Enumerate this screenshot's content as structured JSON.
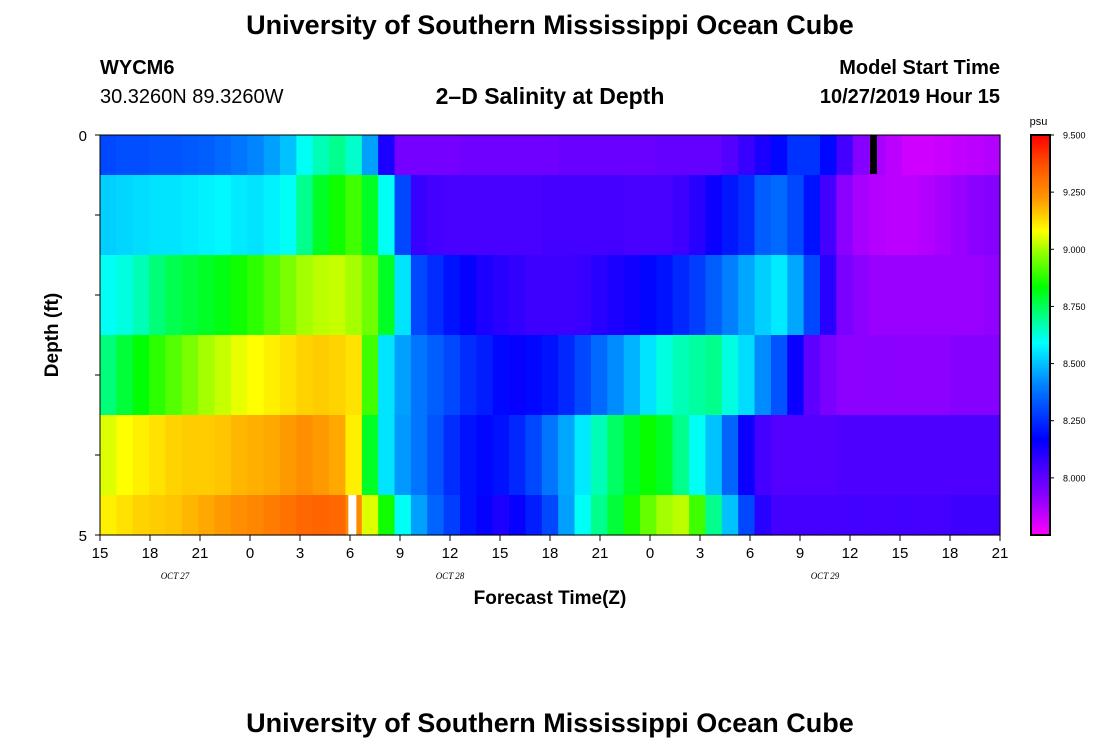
{
  "header": {
    "title": "University of Southern Mississippi Ocean Cube",
    "station_id": "WYCM6",
    "station_coords": "30.3260N 89.3260W",
    "plot_title": "2–D Salinity at Depth",
    "start_label": "Model Start Time",
    "start_value": "10/27/2019 Hour 15"
  },
  "footer": {
    "title": "University of Southern Mississippi Ocean Cube"
  },
  "chart_data": {
    "type": "heatmap",
    "xlabel": "Forecast Time(Z)",
    "ylabel": "Depth (ft)",
    "x_hours": [
      15,
      16,
      17,
      18,
      19,
      20,
      21,
      22,
      23,
      24,
      25,
      26,
      27,
      28,
      29,
      30,
      31,
      32,
      33,
      34,
      35,
      36,
      37,
      38,
      39,
      40,
      41,
      42,
      43,
      44,
      45,
      46,
      47,
      48,
      49,
      50,
      51,
      52,
      53,
      54,
      55,
      56,
      57,
      58,
      59,
      60,
      61,
      62,
      63,
      64,
      65,
      66,
      67,
      68,
      69
    ],
    "x_range": [
      15,
      69
    ],
    "x_tick_labels": [
      "15",
      "18",
      "21",
      "0",
      "3",
      "6",
      "9",
      "12",
      "15",
      "18",
      "21",
      "0",
      "3",
      "6",
      "9",
      "12",
      "15",
      "18",
      "21"
    ],
    "x_tick_hours": [
      15,
      18,
      21,
      24,
      27,
      30,
      33,
      36,
      39,
      42,
      45,
      48,
      51,
      54,
      57,
      60,
      63,
      66,
      69
    ],
    "date_labels": [
      {
        "text": "OCT 27",
        "hour": 19.5
      },
      {
        "text": "OCT 28",
        "hour": 36
      },
      {
        "text": "OCT 29",
        "hour": 58.5
      }
    ],
    "y_tick_labels": [
      "0",
      "5"
    ],
    "y_range": [
      0,
      5
    ],
    "depth_rows": [
      0,
      1,
      2,
      3,
      4,
      5
    ],
    "colorbar": {
      "unit": "psu",
      "min": 7.75,
      "max": 9.5,
      "tick_labels": [
        "9.500",
        "9.250",
        "9.000",
        "8.750",
        "8.500",
        "8.250",
        "8.000"
      ],
      "tick_values": [
        9.5,
        9.25,
        9.0,
        8.75,
        8.5,
        8.25,
        8.0
      ]
    },
    "series": [
      {
        "values": [
          8.3,
          8.31,
          8.31,
          8.32,
          8.32,
          8.33,
          8.34,
          8.36,
          8.38,
          8.41,
          8.45,
          8.5,
          8.6,
          8.66,
          8.7,
          8.64,
          8.45,
          8.12,
          7.96,
          7.96,
          7.96,
          7.96,
          7.97,
          7.97,
          7.97,
          7.97,
          7.97,
          7.97,
          7.98,
          7.98,
          7.98,
          7.98,
          7.98,
          7.98,
          7.99,
          7.99,
          7.99,
          7.99,
          8.02,
          8.07,
          8.12,
          8.18,
          8.26,
          8.26,
          8.18,
          8.05,
          7.93,
          7.88,
          7.85,
          7.82,
          7.82,
          7.83,
          7.84,
          7.85,
          7.86
        ]
      },
      {
        "values": [
          8.52,
          8.53,
          8.54,
          8.55,
          8.55,
          8.56,
          8.57,
          8.58,
          8.56,
          8.55,
          8.57,
          8.6,
          8.7,
          8.8,
          8.85,
          8.9,
          8.8,
          8.6,
          8.3,
          8.07,
          8.05,
          8.04,
          8.04,
          8.04,
          8.04,
          8.04,
          8.04,
          8.05,
          8.05,
          8.05,
          8.05,
          8.05,
          8.04,
          8.04,
          8.04,
          8.06,
          8.1,
          8.15,
          8.21,
          8.25,
          8.34,
          8.36,
          8.3,
          8.2,
          8.05,
          7.92,
          7.88,
          7.86,
          7.85,
          7.85,
          7.86,
          7.88,
          7.9,
          7.92,
          7.93
        ]
      },
      {
        "values": [
          8.6,
          8.62,
          8.66,
          8.72,
          8.76,
          8.78,
          8.8,
          8.82,
          8.85,
          8.88,
          8.92,
          8.96,
          9.0,
          9.02,
          9.03,
          9.0,
          8.95,
          8.8,
          8.55,
          8.3,
          8.25,
          8.2,
          8.16,
          8.12,
          8.1,
          8.08,
          8.06,
          8.06,
          8.06,
          8.07,
          8.1,
          8.12,
          8.14,
          8.18,
          8.2,
          8.24,
          8.28,
          8.34,
          8.4,
          8.46,
          8.52,
          8.56,
          8.46,
          8.3,
          8.1,
          7.95,
          7.92,
          7.9,
          7.9,
          7.9,
          7.9,
          7.9,
          7.9,
          7.9,
          7.91
        ]
      },
      {
        "values": [
          8.72,
          8.78,
          8.83,
          8.88,
          8.92,
          8.96,
          9.0,
          9.03,
          9.06,
          9.08,
          9.1,
          9.12,
          9.14,
          9.15,
          9.14,
          9.12,
          8.9,
          8.55,
          8.45,
          8.38,
          8.34,
          8.3,
          8.25,
          8.22,
          8.18,
          8.16,
          8.18,
          8.2,
          8.24,
          8.3,
          8.36,
          8.42,
          8.48,
          8.55,
          8.62,
          8.66,
          8.68,
          8.7,
          8.62,
          8.54,
          8.42,
          8.32,
          8.15,
          8.0,
          7.95,
          7.92,
          7.92,
          7.92,
          7.92,
          7.92,
          7.92,
          7.92,
          7.93,
          7.93,
          7.93
        ]
      },
      {
        "values": [
          9.05,
          9.08,
          9.1,
          9.12,
          9.14,
          9.15,
          9.15,
          9.16,
          9.18,
          9.19,
          9.2,
          9.22,
          9.24,
          9.22,
          9.2,
          9.1,
          8.8,
          8.55,
          8.44,
          8.38,
          8.32,
          8.25,
          8.2,
          8.18,
          8.2,
          8.24,
          8.3,
          8.38,
          8.46,
          8.56,
          8.66,
          8.74,
          8.8,
          8.84,
          8.8,
          8.7,
          8.6,
          8.5,
          8.35,
          8.15,
          8.05,
          8.02,
          8.02,
          8.02,
          8.02,
          8.03,
          8.03,
          8.03,
          8.03,
          8.03,
          8.03,
          8.03,
          8.03,
          8.03,
          8.03
        ]
      },
      {
        "values": [
          9.1,
          9.12,
          9.14,
          9.15,
          9.16,
          9.18,
          9.2,
          9.22,
          9.24,
          9.26,
          9.28,
          9.3,
          9.32,
          9.33,
          9.32,
          9.25,
          9.05,
          8.85,
          8.6,
          8.45,
          8.35,
          8.28,
          8.2,
          8.16,
          8.12,
          8.16,
          8.22,
          8.3,
          8.45,
          8.6,
          8.7,
          8.78,
          8.86,
          8.94,
          9.0,
          9.02,
          8.9,
          8.7,
          8.5,
          8.3,
          8.1,
          8.05,
          8.05,
          8.05,
          8.05,
          8.05,
          8.05,
          8.05,
          8.05,
          8.05,
          8.05,
          8.05,
          8.06,
          8.06,
          8.06
        ]
      }
    ]
  }
}
